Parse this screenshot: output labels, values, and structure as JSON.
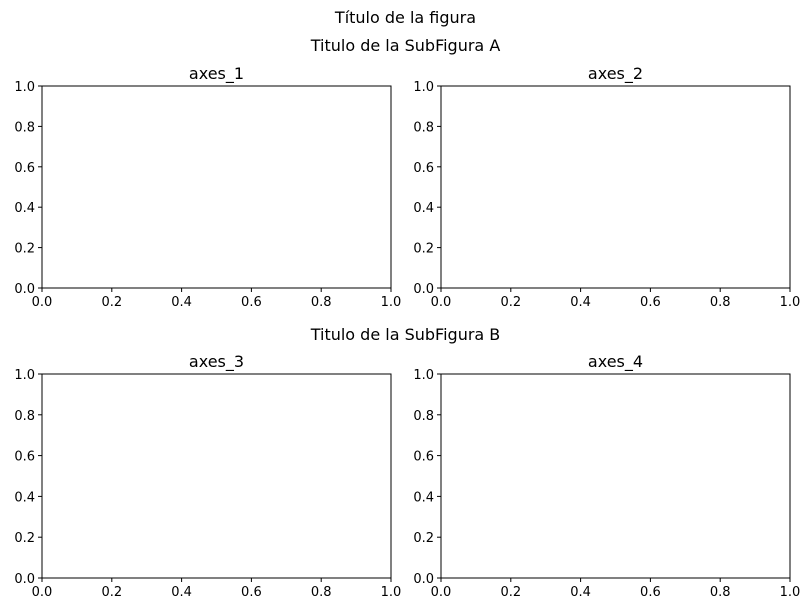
{
  "figure_title": "Título de la figura",
  "subfigures": [
    {
      "title": "Titulo de la SubFigura A"
    },
    {
      "title": "Titulo de la SubFigura B"
    }
  ],
  "chart_data": [
    {
      "type": "line",
      "title": "axes_1",
      "xlabel": "",
      "ylabel": "",
      "xlim": [
        0,
        1
      ],
      "ylim": [
        0,
        1
      ],
      "series": [],
      "grid": false,
      "xticks": [
        "0.0",
        "0.2",
        "0.4",
        "0.6",
        "0.8",
        "1.0"
      ],
      "yticks": [
        "0.0",
        "0.2",
        "0.4",
        "0.6",
        "0.8",
        "1.0"
      ]
    },
    {
      "type": "line",
      "title": "axes_2",
      "xlabel": "",
      "ylabel": "",
      "xlim": [
        0,
        1
      ],
      "ylim": [
        0,
        1
      ],
      "series": [],
      "grid": false,
      "xticks": [
        "0.0",
        "0.2",
        "0.4",
        "0.6",
        "0.8",
        "1.0"
      ],
      "yticks": [
        "0.0",
        "0.2",
        "0.4",
        "0.6",
        "0.8",
        "1.0"
      ]
    },
    {
      "type": "line",
      "title": "axes_3",
      "xlabel": "",
      "ylabel": "",
      "xlim": [
        0,
        1
      ],
      "ylim": [
        0,
        1
      ],
      "series": [],
      "grid": false,
      "xticks": [
        "0.0",
        "0.2",
        "0.4",
        "0.6",
        "0.8",
        "1.0"
      ],
      "yticks": [
        "0.0",
        "0.2",
        "0.4",
        "0.6",
        "0.8",
        "1.0"
      ]
    },
    {
      "type": "line",
      "title": "axes_4",
      "xlabel": "",
      "ylabel": "",
      "xlim": [
        0,
        1
      ],
      "ylim": [
        0,
        1
      ],
      "series": [],
      "grid": false,
      "xticks": [
        "0.0",
        "0.2",
        "0.4",
        "0.6",
        "0.8",
        "1.0"
      ],
      "yticks": [
        "0.0",
        "0.2",
        "0.4",
        "0.6",
        "0.8",
        "1.0"
      ]
    }
  ]
}
